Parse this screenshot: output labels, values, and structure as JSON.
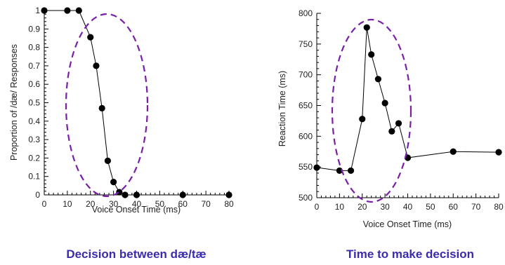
{
  "colors": {
    "caption": "#3a2bb0",
    "ellipse": "#7a1fa8",
    "marker": "#000000"
  },
  "chart_data": [
    {
      "type": "line",
      "caption": "Decision between dæ/tæ",
      "xlabel": "Voice Onset Time (ms)",
      "ylabel": "Proportion of /dæ/ Responses",
      "xlim": [
        0,
        80
      ],
      "ylim": [
        0,
        1
      ],
      "x_ticks": [
        "0",
        "10",
        "20",
        "30",
        "40",
        "50",
        "60",
        "70",
        "80"
      ],
      "y_ticks": [
        "0",
        "0.1",
        "0.2",
        "0.3",
        "0.4",
        "0.5",
        "0.6",
        "0.7",
        "0.8",
        "0.9",
        "1"
      ],
      "grid": false,
      "annotation": "dashed ellipse around the category boundary (approx. 20–40 ms)",
      "x": [
        0,
        10,
        15,
        20,
        22.5,
        25,
        27.5,
        30,
        32.5,
        35,
        40,
        60,
        80
      ],
      "y": [
        1.0,
        1.0,
        1.0,
        0.855,
        0.7,
        0.47,
        0.185,
        0.07,
        0.015,
        0.0,
        0.0,
        0.0,
        0.0
      ]
    },
    {
      "type": "line",
      "caption": "Time to make decision",
      "xlabel": "Voice Onset Time (ms)",
      "ylabel": "Reaction Time (ms)",
      "xlim": [
        0,
        80
      ],
      "ylim": [
        500,
        800
      ],
      "x_ticks": [
        "0",
        "10",
        "20",
        "30",
        "40",
        "50",
        "60",
        "70",
        "80"
      ],
      "y_ticks": [
        "500",
        "550",
        "600",
        "650",
        "700",
        "750",
        "800"
      ],
      "grid": false,
      "annotation": "dashed ellipse around the reaction-time peak (approx. 20–40 ms)",
      "x": [
        0,
        10,
        15,
        20,
        22,
        24,
        27,
        30,
        33,
        36,
        40,
        60,
        80
      ],
      "y": [
        549,
        544,
        544,
        628,
        777,
        733,
        693,
        654,
        608,
        621,
        565,
        575,
        574
      ]
    }
  ]
}
